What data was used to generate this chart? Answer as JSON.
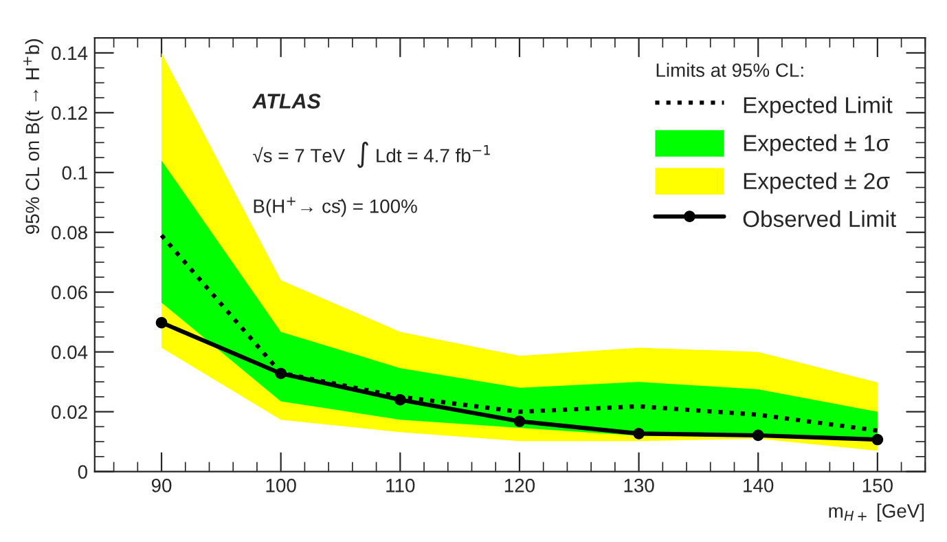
{
  "chart_data": {
    "type": "line",
    "xlabel": "m$_{H+}$ [GeV]",
    "ylabel": "95% CL on B(t → H$^{+}$b)",
    "legend_title": "Limits at 95% CL:",
    "x": [
      90,
      100,
      110,
      120,
      130,
      140,
      150
    ],
    "series": [
      {
        "name": "Expected ± 2σ",
        "type": "area",
        "color": "#ffff00",
        "values": [
          null,
          null,
          null,
          null,
          null,
          null,
          null
        ],
        "lower": [
          0.0414,
          0.0173,
          0.0132,
          0.0102,
          0.0102,
          0.011,
          0.007
        ],
        "upper": [
          0.14,
          0.064,
          0.0467,
          0.0387,
          0.0414,
          0.04,
          0.0298
        ]
      },
      {
        "name": "Expected ± 1σ",
        "type": "area",
        "color": "#00ff00",
        "values": [
          null,
          null,
          null,
          null,
          null,
          null,
          null
        ],
        "lower": [
          0.0565,
          0.0235,
          0.0173,
          0.0146,
          0.012,
          0.012,
          0.0102
        ],
        "upper": [
          0.104,
          0.0467,
          0.0346,
          0.028,
          0.03,
          0.0275,
          0.02
        ]
      },
      {
        "name": "Expected Limit",
        "color": "#000000",
        "line_style": "dotted",
        "marker": "none",
        "values": [
          0.079,
          0.033,
          0.025,
          0.02,
          0.0218,
          0.019,
          0.0137
        ]
      },
      {
        "name": "Observed Limit",
        "color": "#000000",
        "line_style": "solid",
        "marker": "circle",
        "values": [
          0.0498,
          0.0328,
          0.024,
          0.0168,
          0.0127,
          0.0121,
          0.0107
        ]
      }
    ],
    "xlim": [
      84.4,
      154
    ],
    "xticks": [
      90,
      100,
      110,
      120,
      130,
      140,
      150
    ],
    "ylim": [
      0,
      0.145
    ],
    "yticks": [
      0,
      0.02,
      0.04,
      0.06,
      0.08,
      0.1,
      0.12,
      0.14
    ],
    "grid": false,
    "legend": "top right",
    "annotations": [
      "ATLAS",
      "√s = 7 TeV  ∫ Ldt = 4.7 fb$^{−1}$",
      "B(H$^{+}$→ cs̄) = 100%"
    ]
  }
}
